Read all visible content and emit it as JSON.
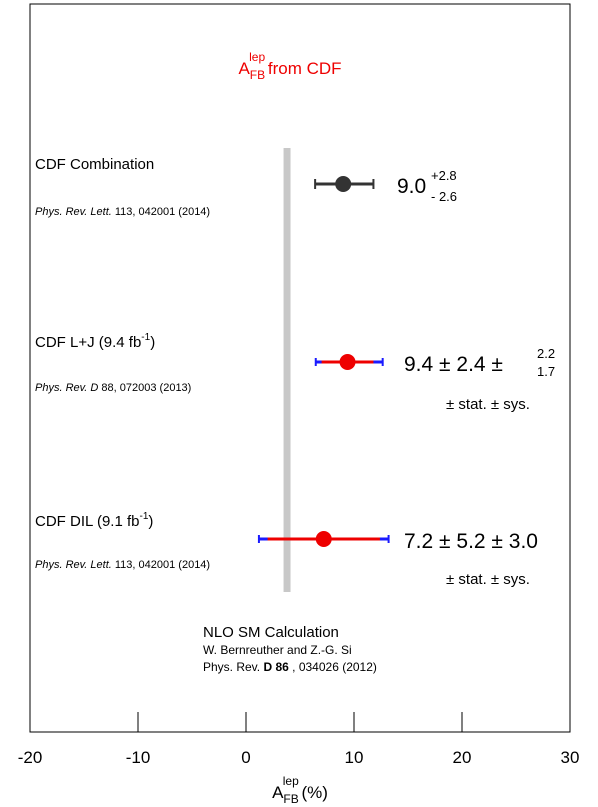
{
  "chart_data": {
    "type": "scatter",
    "title": {
      "main": "A",
      "sup": "lep",
      "sub": "FB",
      "rest": " from CDF"
    },
    "xlabel": {
      "main": "A",
      "sup": "lep",
      "sub": "FB",
      "rest": " (%)"
    },
    "xlim": [
      -20,
      30
    ],
    "xticks": [
      "-20",
      "-10",
      "0",
      "10",
      "20",
      "30"
    ],
    "band": {
      "center": 3.8,
      "label_title": "NLO SM Calculation",
      "label_authors": "W. Bernreuther and Z.-G. Si",
      "label_ref_pre": "Phys. Rev. ",
      "label_ref_vol": "D 86",
      "label_ref_post": " , 034026 (2012)",
      "color": "#c8c8c8"
    },
    "measurements": [
      {
        "name": "CDF Combination",
        "name_sup": "",
        "name_post": "",
        "journal": "Phys. Rev. Lett.",
        "ref": " 113,  042001 (2014)",
        "value": 9.0,
        "err_plus": 2.8,
        "err_minus": 2.6,
        "value_text": "9.0",
        "up_text": "+2.8",
        "down_text": "- 2.6",
        "color": "#333333"
      },
      {
        "name": "CDF L+J (9.4 fb",
        "name_sup": "-1",
        "name_post": ")",
        "journal": "Phys. Rev. D",
        "ref": " 88,  072003 (2013)",
        "value": 9.4,
        "stat": 2.4,
        "sys_plus": 2.2,
        "sys_minus": 1.7,
        "value_text": "9.4 ± 2.4 ±",
        "up_text": "2.2",
        "down_text": "1.7",
        "note": "± stat.  ± sys.",
        "color": "#ee0000",
        "tot_color": "#1a1aff"
      },
      {
        "name": "CDF DIL (9.1 fb",
        "name_sup": "-1",
        "name_post": ")",
        "journal": "Phys. Rev. Lett.",
        "ref": " 113,  042001 (2014)",
        "value": 7.2,
        "stat": 5.2,
        "sys": 3.0,
        "value_text": "7.2 ± 5.2 ± 3.0",
        "note": "± stat.  ± sys.",
        "color": "#ee0000",
        "tot_color": "#1a1aff"
      }
    ]
  }
}
